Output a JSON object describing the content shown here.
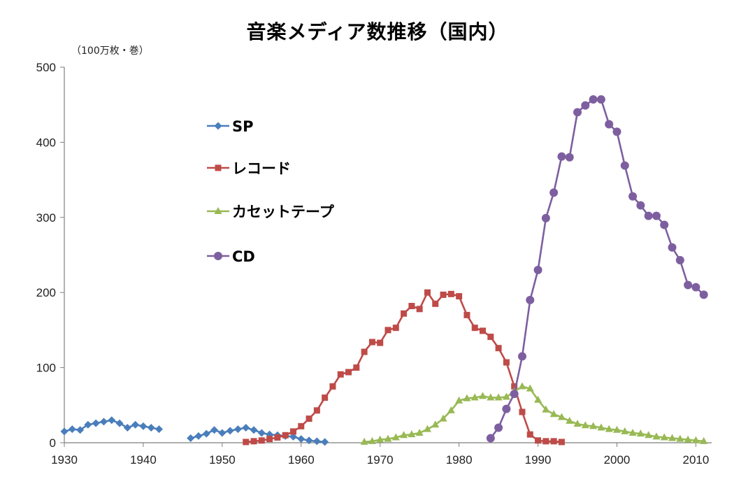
{
  "title": "音楽メディア数推移（国内）",
  "unit_label": "（100万枚・巻）",
  "chart_data": {
    "type": "line",
    "title": "音楽メディア数推移（国内）",
    "ylabel": "（100万枚・巻）",
    "xlabel": "",
    "xlim": [
      1930,
      2012
    ],
    "ylim": [
      0,
      500
    ],
    "x_ticks": [
      1930,
      1940,
      1950,
      1960,
      1970,
      1980,
      1990,
      2000,
      2010
    ],
    "y_ticks": [
      0,
      100,
      200,
      300,
      400,
      500
    ],
    "legend_position": "upper-left",
    "grid": false,
    "series": [
      {
        "name": "SP",
        "color": "#4a7ebb",
        "marker": "diamond",
        "segments": [
          [
            [
              1930,
              15
            ],
            [
              1931,
              18
            ],
            [
              1932,
              17
            ],
            [
              1933,
              24
            ],
            [
              1934,
              26
            ],
            [
              1935,
              28
            ],
            [
              1936,
              30
            ],
            [
              1937,
              26
            ],
            [
              1938,
              20
            ],
            [
              1939,
              24
            ],
            [
              1940,
              22
            ],
            [
              1941,
              20
            ],
            [
              1942,
              18
            ]
          ],
          [
            [
              1946,
              6
            ],
            [
              1947,
              9
            ],
            [
              1948,
              12
            ],
            [
              1949,
              17
            ],
            [
              1950,
              13
            ],
            [
              1951,
              16
            ],
            [
              1952,
              18
            ],
            [
              1953,
              20
            ],
            [
              1954,
              17
            ],
            [
              1955,
              13
            ],
            [
              1956,
              11
            ],
            [
              1957,
              10
            ],
            [
              1958,
              9
            ],
            [
              1959,
              8
            ],
            [
              1960,
              5
            ],
            [
              1961,
              3
            ],
            [
              1962,
              2
            ],
            [
              1963,
              1
            ]
          ]
        ]
      },
      {
        "name": "レコード",
        "color": "#be4b48",
        "marker": "square",
        "segments": [
          [
            [
              1953,
              1
            ],
            [
              1954,
              2
            ],
            [
              1955,
              3
            ],
            [
              1956,
              5
            ],
            [
              1957,
              7
            ],
            [
              1958,
              10
            ],
            [
              1959,
              15
            ],
            [
              1960,
              22
            ],
            [
              1961,
              32
            ],
            [
              1962,
              43
            ],
            [
              1963,
              60
            ],
            [
              1964,
              75
            ],
            [
              1965,
              91
            ],
            [
              1966,
              94
            ],
            [
              1967,
              100
            ],
            [
              1968,
              121
            ],
            [
              1969,
              134
            ],
            [
              1970,
              133
            ],
            [
              1971,
              150
            ],
            [
              1972,
              153
            ],
            [
              1973,
              172
            ],
            [
              1974,
              182
            ],
            [
              1975,
              178
            ],
            [
              1976,
              200
            ],
            [
              1977,
              185
            ],
            [
              1978,
              197
            ],
            [
              1979,
              198
            ],
            [
              1980,
              195
            ],
            [
              1981,
              170
            ],
            [
              1982,
              153
            ],
            [
              1983,
              149
            ],
            [
              1984,
              141
            ],
            [
              1985,
              126
            ],
            [
              1986,
              107
            ],
            [
              1987,
              75
            ],
            [
              1988,
              41
            ],
            [
              1989,
              11
            ],
            [
              1990,
              3
            ],
            [
              1991,
              2
            ],
            [
              1992,
              2
            ],
            [
              1993,
              1
            ]
          ]
        ]
      },
      {
        "name": "カセットテープ",
        "color": "#98b954",
        "marker": "triangle",
        "segments": [
          [
            [
              1968,
              1
            ],
            [
              1969,
              2
            ],
            [
              1970,
              4
            ],
            [
              1971,
              5
            ],
            [
              1972,
              7
            ],
            [
              1973,
              10
            ],
            [
              1974,
              11
            ],
            [
              1975,
              13
            ],
            [
              1976,
              18
            ],
            [
              1977,
              24
            ],
            [
              1978,
              32
            ],
            [
              1979,
              43
            ],
            [
              1980,
              56
            ],
            [
              1981,
              59
            ],
            [
              1982,
              60
            ],
            [
              1983,
              62
            ],
            [
              1984,
              60
            ],
            [
              1985,
              60
            ],
            [
              1986,
              61
            ],
            [
              1987,
              68
            ],
            [
              1988,
              75
            ],
            [
              1989,
              72
            ],
            [
              1990,
              57
            ],
            [
              1991,
              44
            ],
            [
              1992,
              38
            ],
            [
              1993,
              34
            ],
            [
              1994,
              29
            ],
            [
              1995,
              25
            ],
            [
              1996,
              23
            ],
            [
              1997,
              22
            ],
            [
              1998,
              20
            ],
            [
              1999,
              18
            ],
            [
              2000,
              17
            ],
            [
              2001,
              15
            ],
            [
              2002,
              13
            ],
            [
              2003,
              12
            ],
            [
              2004,
              10
            ],
            [
              2005,
              8
            ],
            [
              2006,
              7
            ],
            [
              2007,
              6
            ],
            [
              2008,
              5
            ],
            [
              2009,
              4
            ],
            [
              2010,
              3
            ],
            [
              2011,
              2
            ]
          ]
        ]
      },
      {
        "name": "CD",
        "color": "#7d5fa0",
        "marker": "circle",
        "segments": [
          [
            [
              1984,
              6
            ],
            [
              1985,
              20
            ],
            [
              1986,
              45
            ],
            [
              1987,
              65
            ],
            [
              1988,
              115
            ],
            [
              1989,
              190
            ],
            [
              1990,
              230
            ],
            [
              1991,
              299
            ],
            [
              1992,
              333
            ],
            [
              1993,
              381
            ],
            [
              1994,
              380
            ],
            [
              1995,
              440
            ],
            [
              1996,
              449
            ],
            [
              1997,
              457
            ],
            [
              1998,
              457
            ],
            [
              1999,
              424
            ],
            [
              2000,
              414
            ],
            [
              2001,
              369
            ],
            [
              2002,
              328
            ],
            [
              2003,
              316
            ],
            [
              2004,
              302
            ],
            [
              2005,
              302
            ],
            [
              2006,
              290
            ],
            [
              2007,
              260
            ],
            [
              2008,
              243
            ],
            [
              2009,
              210
            ],
            [
              2010,
              207
            ],
            [
              2011,
              197
            ]
          ]
        ]
      }
    ]
  }
}
